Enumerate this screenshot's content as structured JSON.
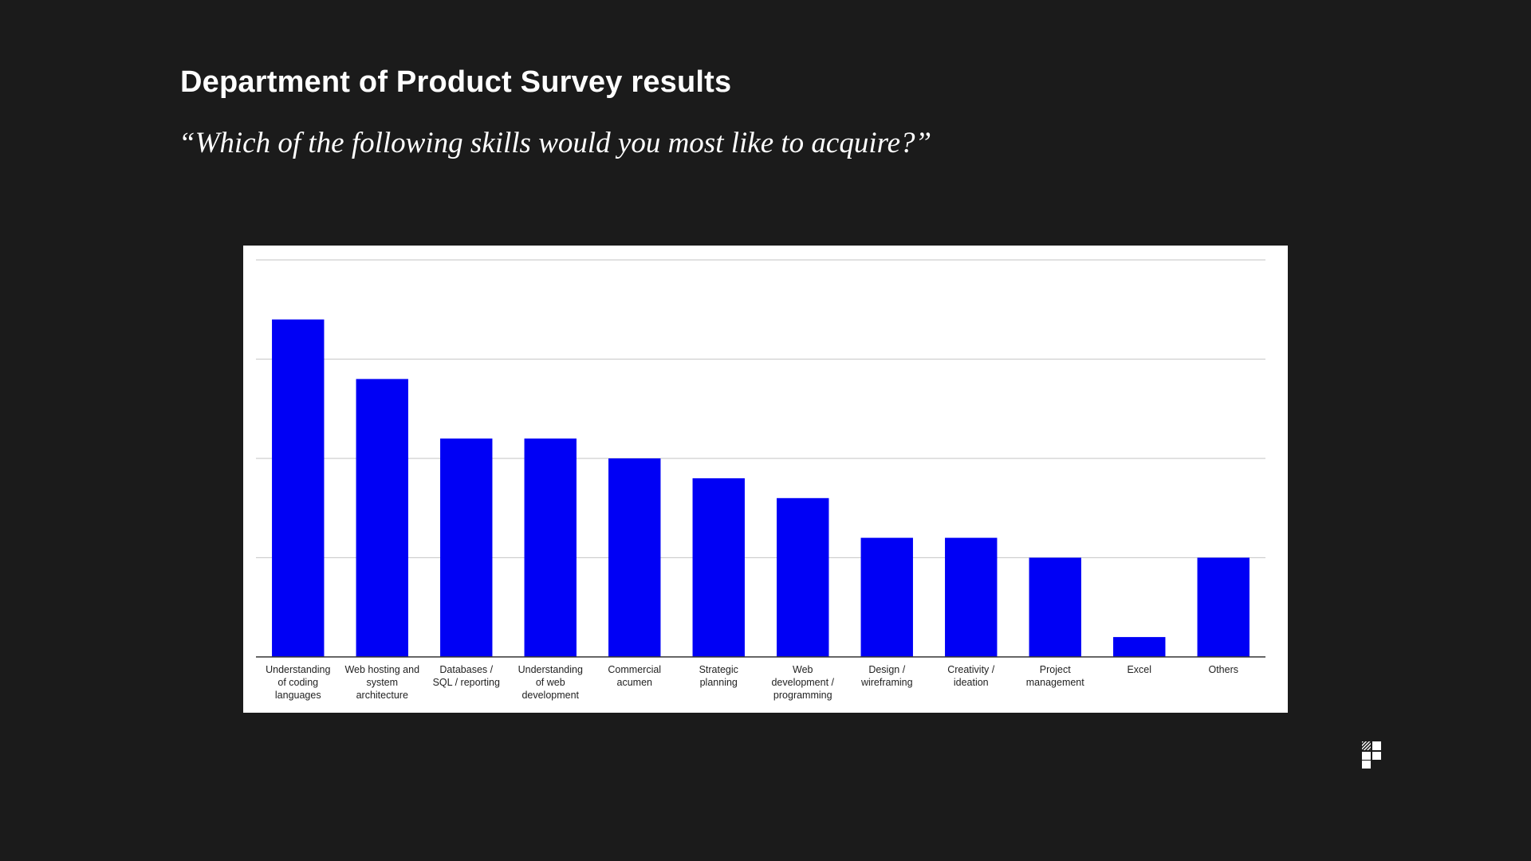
{
  "slide": {
    "title": "Department of Product Survey results",
    "subtitle": "“Which of the following skills would you most like to acquire?”"
  },
  "logo": {
    "icon": "brand-logo-icon"
  },
  "colors": {
    "background": "#1b1b1b",
    "bar": "#0000f5",
    "gridline": "#cfcfcf",
    "axis": "#333333"
  },
  "chart_data": {
    "type": "bar",
    "title": "",
    "xlabel": "",
    "ylabel": "",
    "grid": true,
    "legend": "none",
    "ylim": [
      0,
      20
    ],
    "gridlines": [
      0,
      5,
      10,
      15,
      20
    ],
    "categories": [
      [
        "Understanding",
        "of coding",
        "languages"
      ],
      [
        "Web hosting and",
        "system",
        "architecture"
      ],
      [
        "Databases /",
        "SQL / reporting"
      ],
      [
        "Understanding",
        "of web",
        "development"
      ],
      [
        "Commercial",
        "acumen"
      ],
      [
        "Strategic",
        "planning"
      ],
      [
        "Web",
        "development /",
        "programming"
      ],
      [
        "Design /",
        "wireframing"
      ],
      [
        "Creativity /",
        "ideation"
      ],
      [
        "Project",
        "management"
      ],
      [
        "Excel"
      ],
      [
        "Others"
      ]
    ],
    "values": [
      17,
      14,
      11,
      11,
      10,
      9,
      8,
      6,
      6,
      5,
      1,
      5
    ]
  }
}
